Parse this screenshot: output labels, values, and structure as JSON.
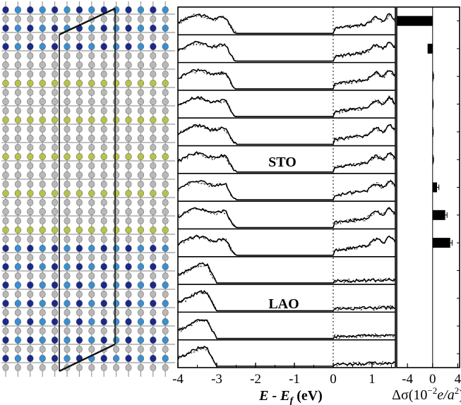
{
  "chart_data": [
    {
      "type": "image",
      "description_colors": {
        "bond": "#9a9a9a",
        "atom_grey": "#b8b8b8",
        "atom_olive": "#b7c24a",
        "atom_sky": "#3a8fd0",
        "atom_navy": "#1a2a8a",
        "cell_line": "#111111"
      }
    },
    {
      "type": "line",
      "panels": 13,
      "xlim": [
        -4,
        1.6
      ],
      "x_ticks": [
        -4,
        -3,
        -2,
        -1,
        0,
        1
      ],
      "x_tick_labels": [
        "-4",
        "-3",
        "-2",
        "-1",
        "0",
        "1"
      ],
      "fermi_level": 0,
      "xlabel_main": "E - E",
      "xlabel_sub": "f",
      "xlabel_unit": " (eV)",
      "region_labels": [
        {
          "text": "STO",
          "panel": 5
        },
        {
          "text": "LAO",
          "panel": 10
        }
      ],
      "series": [
        {
          "style": "solid",
          "color": "#000000"
        },
        {
          "style": "dashed",
          "color": "#000000"
        }
      ]
    },
    {
      "type": "bar",
      "orientation": "horizontal",
      "xlim": [
        -5.7,
        4.4
      ],
      "x_ticks": [
        -4,
        0,
        4
      ],
      "x_tick_labels": [
        "-4",
        "0",
        "4"
      ],
      "values": [
        -5.7,
        -0.8,
        0.1,
        0.05,
        0.05,
        0.1,
        0.7,
        2.0,
        2.8,
        0,
        0,
        0,
        0
      ],
      "errors": [
        0,
        0,
        0.05,
        0.05,
        0.05,
        0.05,
        0.3,
        0.3,
        0.3,
        0,
        0,
        0,
        0
      ],
      "xlabel_prefix": "Δσ(10",
      "xlabel_exp": "−2",
      "xlabel_unit": "e/a",
      "xlabel_unit_exp": "2",
      "xlabel_suffix": ")"
    }
  ]
}
